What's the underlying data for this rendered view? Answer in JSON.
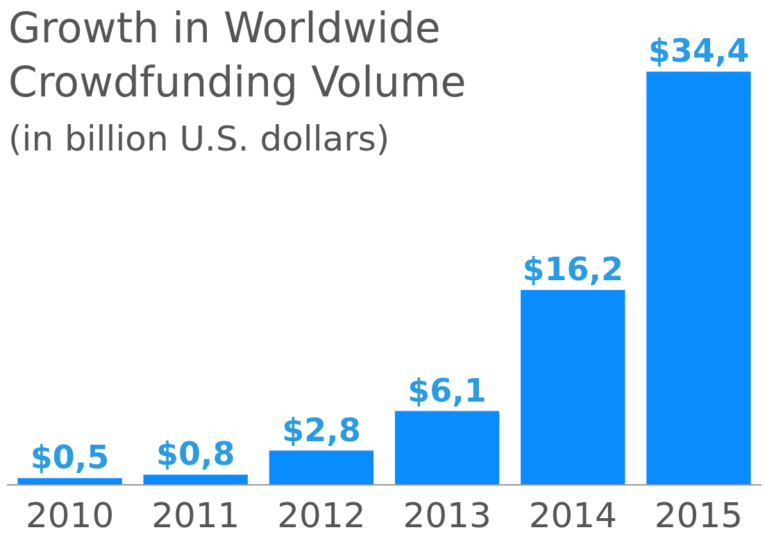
{
  "chart_data": {
    "type": "bar",
    "title": "Growth in Worldwide\nCrowdfunding Volume",
    "subtitle": "(in billion U.S. dollars)",
    "categories": [
      "2010",
      "2011",
      "2012",
      "2013",
      "2014",
      "2015"
    ],
    "values": [
      0.5,
      0.8,
      2.8,
      6.1,
      16.2,
      34.4
    ],
    "value_labels": [
      "$0,5",
      "$0,8",
      "$2,8",
      "$6,1",
      "$16,2",
      "$34,4"
    ],
    "color": "#0a8cff",
    "legend": false
  }
}
